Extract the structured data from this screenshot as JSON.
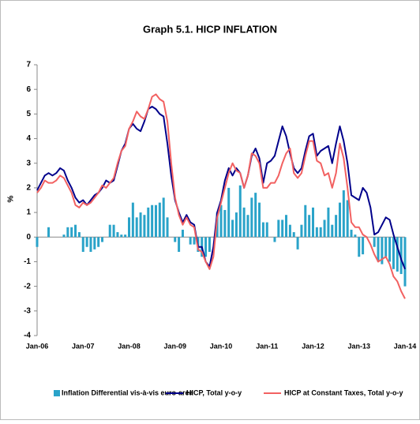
{
  "chart_data": {
    "type": "bar",
    "title": "Graph 5.1. HICP INFLATION",
    "y_label": "%",
    "categories": [
      "Jan-06",
      null,
      null,
      null,
      null,
      null,
      null,
      null,
      null,
      null,
      null,
      null,
      "Jan-07",
      null,
      null,
      null,
      null,
      null,
      null,
      null,
      null,
      null,
      null,
      null,
      "Jan-08",
      null,
      null,
      null,
      null,
      null,
      null,
      null,
      null,
      null,
      null,
      null,
      "Jan-09",
      null,
      null,
      null,
      null,
      null,
      null,
      null,
      null,
      null,
      null,
      null,
      "Jan-10",
      null,
      null,
      null,
      null,
      null,
      null,
      null,
      null,
      null,
      null,
      null,
      "Jan-11",
      null,
      null,
      null,
      null,
      null,
      null,
      null,
      null,
      null,
      null,
      null,
      "Jan-12",
      null,
      null,
      null,
      null,
      null,
      null,
      null,
      null,
      null,
      null,
      null,
      "Jan-13",
      null,
      null,
      null,
      null,
      null,
      null,
      null,
      null,
      null,
      null,
      null,
      "Jan-14"
    ],
    "series": [
      {
        "name": "Inflation Differential vis-à-vis euro-area",
        "type": "bar",
        "color": "#2aa3c9",
        "values": [
          -0.4,
          0,
          0,
          0.4,
          0,
          0,
          0,
          0.1,
          0.4,
          0.4,
          0.5,
          0.2,
          -0.6,
          -0.4,
          -0.6,
          -0.5,
          -0.4,
          -0.2,
          0,
          0.5,
          0.5,
          0.2,
          0.1,
          0.1,
          0.8,
          1.4,
          0.8,
          1.0,
          0.9,
          1.2,
          1.3,
          1.3,
          1.4,
          1.6,
          0.8,
          0,
          -0.2,
          -0.6,
          0.3,
          0,
          -0.3,
          -0.3,
          -0.6,
          -0.8,
          -0.8,
          -0.6,
          0,
          1.0,
          1.3,
          1.1,
          2.0,
          0.7,
          1.0,
          2.1,
          1.2,
          0.9,
          1.6,
          1.8,
          1.4,
          0.6,
          0.6,
          0,
          -0.2,
          0.7,
          0.7,
          0.9,
          0.5,
          0.2,
          -0.5,
          0.5,
          1.3,
          0.9,
          1.2,
          0.4,
          0.4,
          0.7,
          1.2,
          0.5,
          0.9,
          1.4,
          1.9,
          1.5,
          0.3,
          0.1,
          -0.8,
          -0.7,
          0,
          0,
          -0.4,
          -1.0,
          -1.1,
          -0.8,
          -1.0,
          -1.3,
          -1.4,
          -1.5,
          -2.0
        ]
      },
      {
        "name": "HICP, Total y-o-y",
        "type": "line",
        "color": "#00008b",
        "values": [
          1.9,
          2.2,
          2.5,
          2.6,
          2.5,
          2.6,
          2.8,
          2.7,
          2.3,
          2.0,
          1.6,
          1.4,
          1.5,
          1.3,
          1.5,
          1.7,
          1.8,
          2.0,
          2.3,
          2.2,
          2.3,
          2.9,
          3.5,
          3.8,
          4.4,
          4.6,
          4.4,
          4.3,
          4.7,
          5.2,
          5.3,
          5.2,
          5.0,
          4.9,
          3.8,
          2.5,
          1.5,
          1.0,
          0.6,
          0.9,
          0.6,
          0.5,
          -0.4,
          -0.4,
          -1.0,
          -1.2,
          -0.4,
          1.0,
          1.5,
          2.3,
          2.8,
          2.5,
          2.8,
          2.6,
          2.0,
          2.5,
          3.3,
          3.6,
          3.2,
          2.2,
          3.0,
          3.1,
          3.3,
          3.9,
          4.5,
          4.1,
          3.4,
          2.8,
          2.6,
          2.8,
          3.5,
          4.1,
          4.2,
          3.3,
          3.5,
          3.6,
          3.7,
          3.0,
          3.8,
          4.5,
          3.9,
          3.0,
          1.7,
          1.6,
          1.5,
          2.0,
          1.8,
          1.2,
          0.1,
          0.2,
          0.5,
          0.8,
          0.7,
          0.1,
          -0.4,
          -0.9,
          -1.3
        ]
      },
      {
        "name": "HICP at Constant Taxes, Total y-o-y",
        "type": "line",
        "color": "#f26161",
        "values": [
          1.8,
          2.0,
          2.3,
          2.2,
          2.2,
          2.3,
          2.5,
          2.4,
          2.1,
          1.8,
          1.3,
          1.2,
          1.4,
          1.3,
          1.4,
          1.6,
          1.8,
          2.1,
          2.0,
          2.2,
          2.4,
          3.0,
          3.5,
          3.7,
          4.4,
          4.7,
          5.1,
          4.9,
          4.8,
          5.2,
          5.7,
          5.8,
          5.6,
          5.5,
          4.7,
          3.0,
          1.6,
          0.9,
          0.5,
          0.8,
          0.5,
          0.4,
          -0.5,
          -0.6,
          -1.0,
          -1.3,
          -0.8,
          0.8,
          1.4,
          2.0,
          2.6,
          3.0,
          2.7,
          2.6,
          2.0,
          2.5,
          3.4,
          3.3,
          3.0,
          2.0,
          2.0,
          2.2,
          2.2,
          2.5,
          3.0,
          3.4,
          3.6,
          2.6,
          2.4,
          2.6,
          3.3,
          3.9,
          3.9,
          3.1,
          3.0,
          2.5,
          2.6,
          2.0,
          2.6,
          3.8,
          3.2,
          2.0,
          0.6,
          0.4,
          0.4,
          0.1,
          0.0,
          -0.3,
          -0.7,
          -1.0,
          -0.9,
          -0.8,
          -1.1,
          -1.6,
          -1.8,
          -2.2,
          -2.5
        ]
      }
    ],
    "ylim": [
      -4,
      7
    ],
    "yticks": [
      -4,
      -3,
      -2,
      -1,
      0,
      1,
      2,
      3,
      4,
      5,
      6,
      7
    ],
    "grid": false,
    "legend": "bottom"
  }
}
